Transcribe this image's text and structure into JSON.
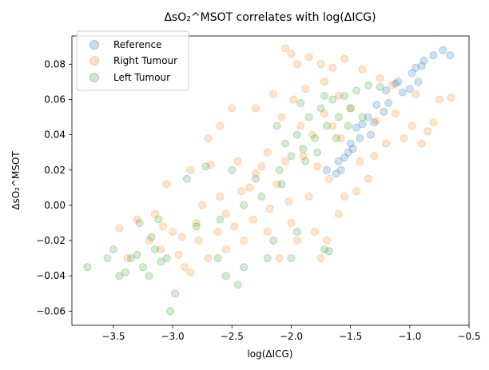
{
  "chart_data": {
    "type": "scatter",
    "title": "ΔsO₂^MSOT correlates with log(ΔICG)",
    "xlabel": "log(ΔICG)",
    "ylabel": "ΔsO₂^MSOT",
    "xlim": [
      -3.85,
      -0.5
    ],
    "ylim": [
      -0.068,
      0.096
    ],
    "x_ticks": [
      "−3.5",
      "−3.0",
      "−2.5",
      "−2.0",
      "−1.5",
      "−1.0",
      "−0.5"
    ],
    "y_ticks": [
      "−0.06",
      "−0.04",
      "−0.02",
      "0.00",
      "0.02",
      "0.04",
      "0.06",
      "0.08"
    ],
    "grid": false,
    "legend_position": "upper-left",
    "series": [
      {
        "name": "Reference",
        "color": "#1f77b4",
        "points": [
          [
            -0.72,
            0.088
          ],
          [
            -0.66,
            0.085
          ],
          [
            -0.8,
            0.085
          ],
          [
            -0.88,
            0.082
          ],
          [
            -0.9,
            0.079
          ],
          [
            -0.95,
            0.078
          ],
          [
            -0.98,
            0.075
          ],
          [
            -0.93,
            0.07
          ],
          [
            -1.1,
            0.07
          ],
          [
            -1.12,
            0.069
          ],
          [
            -1.0,
            0.066
          ],
          [
            -1.06,
            0.064
          ],
          [
            -1.2,
            0.065
          ],
          [
            -1.18,
            0.058
          ],
          [
            -1.28,
            0.057
          ],
          [
            -1.22,
            0.053
          ],
          [
            -1.35,
            0.05
          ],
          [
            -1.3,
            0.047
          ],
          [
            -1.4,
            0.046
          ],
          [
            -1.45,
            0.044
          ],
          [
            -1.33,
            0.04
          ],
          [
            -1.5,
            0.035
          ],
          [
            -1.48,
            0.032
          ],
          [
            -1.55,
            0.027
          ],
          [
            -1.6,
            0.025
          ],
          [
            -1.58,
            0.02
          ],
          [
            -1.62,
            0.018
          ],
          [
            -1.7,
            0.02
          ],
          [
            -1.52,
            0.03
          ],
          [
            -1.42,
            0.038
          ]
        ]
      },
      {
        "name": "Right Tumour",
        "color": "#ff7f0e",
        "points": [
          [
            -2.05,
            0.089
          ],
          [
            -2.0,
            0.086
          ],
          [
            -1.85,
            0.084
          ],
          [
            -1.75,
            0.08
          ],
          [
            -1.95,
            0.08
          ],
          [
            -1.55,
            0.083
          ],
          [
            -1.65,
            0.078
          ],
          [
            -1.4,
            0.077
          ],
          [
            -1.25,
            0.072
          ],
          [
            -1.15,
            0.068
          ],
          [
            -0.95,
            0.063
          ],
          [
            -0.75,
            0.06
          ],
          [
            -0.65,
            0.061
          ],
          [
            -0.8,
            0.047
          ],
          [
            -0.85,
            0.042
          ],
          [
            -0.9,
            0.035
          ],
          [
            -1.05,
            0.038
          ],
          [
            -2.15,
            0.063
          ],
          [
            -2.3,
            0.055
          ],
          [
            -2.5,
            0.055
          ],
          [
            -2.6,
            0.045
          ],
          [
            -2.7,
            0.038
          ],
          [
            -2.45,
            0.025
          ],
          [
            -2.68,
            0.023
          ],
          [
            -2.85,
            0.02
          ],
          [
            -3.05,
            0.012
          ],
          [
            -2.2,
            0.03
          ],
          [
            -2.35,
            0.01
          ],
          [
            -2.55,
            -0.005
          ],
          [
            -3.3,
            -0.008
          ],
          [
            -3.45,
            -0.013
          ],
          [
            -3.2,
            -0.02
          ],
          [
            -3.1,
            -0.025
          ],
          [
            -2.95,
            -0.028
          ],
          [
            -3.38,
            -0.03
          ],
          [
            -2.9,
            -0.035
          ],
          [
            -2.85,
            -0.038
          ],
          [
            -2.7,
            -0.03
          ],
          [
            -2.55,
            -0.025
          ],
          [
            -2.4,
            -0.02
          ],
          [
            -2.2,
            -0.015
          ],
          [
            -2.0,
            -0.01
          ],
          [
            -1.95,
            -0.02
          ],
          [
            -1.8,
            -0.015
          ],
          [
            -1.7,
            -0.02
          ],
          [
            -1.75,
            -0.03
          ],
          [
            -2.1,
            -0.03
          ],
          [
            -1.6,
            -0.005
          ],
          [
            -1.55,
            0.005
          ],
          [
            -1.45,
            0.008
          ],
          [
            -1.35,
            0.015
          ],
          [
            -1.3,
            0.028
          ],
          [
            -1.2,
            0.035
          ],
          [
            -1.5,
            0.055
          ],
          [
            -1.6,
            0.062
          ],
          [
            -1.72,
            0.07
          ],
          [
            -1.88,
            0.066
          ],
          [
            -1.98,
            0.06
          ],
          [
            -2.08,
            0.05
          ],
          [
            -1.82,
            0.04
          ],
          [
            -1.65,
            0.045
          ],
          [
            -2.25,
            0.022
          ],
          [
            -2.42,
            0.008
          ],
          [
            -2.8,
            -0.01
          ],
          [
            -3.0,
            -0.015
          ],
          [
            -3.15,
            -0.005
          ],
          [
            -2.75,
            0.0
          ],
          [
            -2.6,
            0.005
          ],
          [
            -2.3,
            0.018
          ],
          [
            -2.05,
            0.025
          ],
          [
            -1.9,
            0.028
          ],
          [
            -1.78,
            0.022
          ],
          [
            -1.68,
            0.015
          ],
          [
            -1.85,
            0.005
          ],
          [
            -2.02,
            0.002
          ],
          [
            -2.12,
            0.012
          ],
          [
            -2.18,
            -0.002
          ],
          [
            -2.32,
            -0.008
          ],
          [
            -2.48,
            -0.012
          ],
          [
            -2.62,
            -0.015
          ],
          [
            -2.78,
            -0.02
          ],
          [
            -2.92,
            -0.018
          ],
          [
            -3.08,
            -0.012
          ],
          [
            -1.92,
            0.045
          ],
          [
            -1.72,
            0.052
          ],
          [
            -1.58,
            0.038
          ],
          [
            -1.42,
            0.025
          ],
          [
            -1.28,
            0.048
          ],
          [
            -1.12,
            0.052
          ],
          [
            -0.98,
            0.045
          ]
        ]
      },
      {
        "name": "Left Tumour",
        "color": "#2ca02c",
        "points": [
          [
            -3.72,
            -0.035
          ],
          [
            -3.55,
            -0.03
          ],
          [
            -3.5,
            -0.025
          ],
          [
            -3.45,
            -0.04
          ],
          [
            -3.4,
            -0.038
          ],
          [
            -3.35,
            -0.03
          ],
          [
            -3.3,
            -0.028
          ],
          [
            -3.25,
            -0.035
          ],
          [
            -3.2,
            -0.04
          ],
          [
            -3.15,
            -0.025
          ],
          [
            -3.1,
            -0.032
          ],
          [
            -3.05,
            -0.03
          ],
          [
            -3.02,
            -0.06
          ],
          [
            -2.98,
            -0.05
          ],
          [
            -3.18,
            -0.018
          ],
          [
            -3.28,
            -0.01
          ],
          [
            -3.12,
            -0.008
          ],
          [
            -2.62,
            -0.03
          ],
          [
            -2.55,
            -0.04
          ],
          [
            -2.45,
            -0.045
          ],
          [
            -2.4,
            -0.035
          ],
          [
            -2.2,
            -0.03
          ],
          [
            -2.15,
            -0.02
          ],
          [
            -2.0,
            -0.03
          ],
          [
            -1.72,
            -0.025
          ],
          [
            -1.68,
            -0.026
          ],
          [
            -1.95,
            -0.015
          ],
          [
            -2.5,
            0.02
          ],
          [
            -2.72,
            0.022
          ],
          [
            -2.88,
            0.015
          ],
          [
            -2.3,
            0.015
          ],
          [
            -2.1,
            0.02
          ],
          [
            -2.05,
            0.035
          ],
          [
            -1.95,
            0.04
          ],
          [
            -1.85,
            0.05
          ],
          [
            -1.75,
            0.055
          ],
          [
            -1.65,
            0.06
          ],
          [
            -1.55,
            0.062
          ],
          [
            -1.45,
            0.065
          ],
          [
            -1.35,
            0.068
          ],
          [
            -1.25,
            0.067
          ],
          [
            -1.7,
            0.045
          ],
          [
            -1.8,
            0.038
          ],
          [
            -1.9,
            0.032
          ],
          [
            -2.0,
            0.028
          ],
          [
            -1.6,
            0.05
          ],
          [
            -1.5,
            0.055
          ],
          [
            -1.4,
            0.05
          ],
          [
            -1.78,
            0.03
          ],
          [
            -1.88,
            0.025
          ],
          [
            -2.08,
            0.012
          ],
          [
            -2.25,
            0.005
          ],
          [
            -2.4,
            0.0
          ],
          [
            -2.6,
            -0.008
          ],
          [
            -2.8,
            -0.012
          ],
          [
            -1.62,
            0.038
          ],
          [
            -1.52,
            0.045
          ],
          [
            -1.72,
            0.062
          ],
          [
            -1.92,
            0.058
          ],
          [
            -2.12,
            0.045
          ]
        ]
      }
    ]
  }
}
